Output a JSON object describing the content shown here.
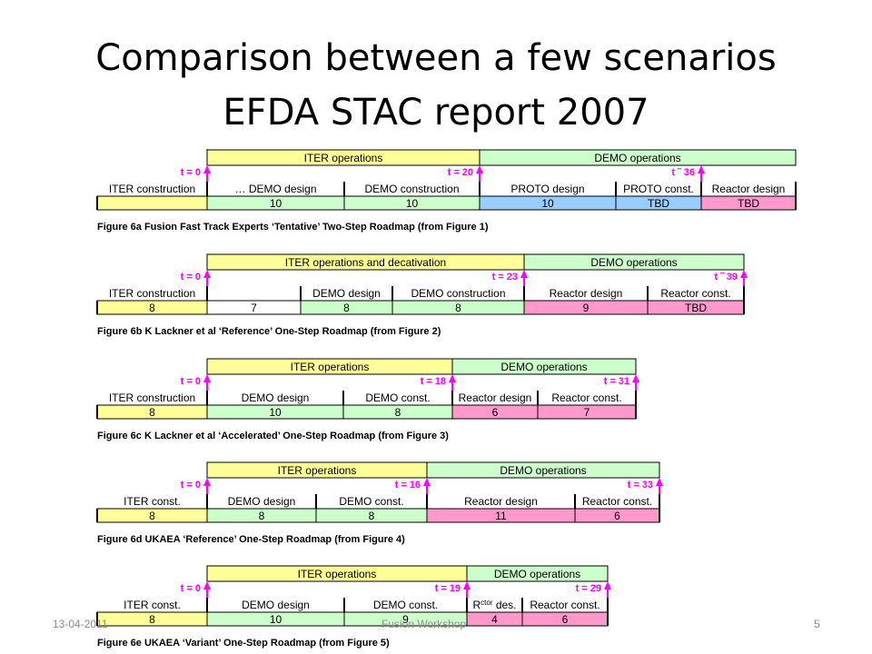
{
  "slide": {
    "title_line1": "Comparison between a few scenarios",
    "title_line2": "EFDA STAC report 2007"
  },
  "colors": {
    "yellow": "#ffff99",
    "green": "#ccffcc",
    "blue": "#99ccff",
    "pink": "#ff99cc",
    "white": "#ffffff",
    "arrow": "#ff00ff"
  },
  "roadmaps": [
    {
      "caption": "Figure 6a  Fusion Fast Track Experts ‘Tentative’ Two-Step Roadmap (from Figure 1)",
      "phases": [
        {
          "label": "ITER operations",
          "color": "yellow"
        },
        {
          "label": "DEMO operations",
          "color": "green"
        }
      ],
      "markers": [
        "t = 0",
        "t = 20",
        "t ˜ 36"
      ],
      "steps": [
        {
          "label": "ITER construction",
          "value": "",
          "color": "yellow"
        },
        {
          "label": "… DEMO design",
          "value": "10",
          "color": "green"
        },
        {
          "label": "DEMO construction",
          "value": "10",
          "color": "green"
        },
        {
          "label": "PROTO design",
          "value": "10",
          "color": "blue"
        },
        {
          "label": "PROTO const.",
          "value": "TBD",
          "color": "blue"
        },
        {
          "label": "Reactor design",
          "value": "TBD",
          "color": "pink"
        }
      ]
    },
    {
      "caption": "Figure 6b  K Lackner et al ‘Reference’ One-Step Roadmap (from Figure 2)",
      "phases": [
        {
          "label": "ITER operations and decativation",
          "color": "yellow"
        },
        {
          "label": "DEMO operations",
          "color": "green"
        }
      ],
      "markers": [
        "t = 0",
        "t = 23",
        "t ˜ 39"
      ],
      "steps": [
        {
          "label": "ITER construction",
          "value": "8",
          "color": "yellow"
        },
        {
          "label": "",
          "value": "7",
          "color": "white"
        },
        {
          "label": "DEMO design",
          "value": "8",
          "color": "green"
        },
        {
          "label": "DEMO construction",
          "value": "8",
          "color": "green"
        },
        {
          "label": "Reactor design",
          "value": "9",
          "color": "pink"
        },
        {
          "label": "Reactor const.",
          "value": "TBD",
          "color": "pink"
        }
      ]
    },
    {
      "caption": "Figure 6c  K Lackner et al ‘Accelerated’ One-Step Roadmap (from Figure 3)",
      "phases": [
        {
          "label": "ITER operations",
          "color": "yellow"
        },
        {
          "label": "DEMO operations",
          "color": "green"
        }
      ],
      "markers": [
        "t = 0",
        "t = 18",
        "t = 31"
      ],
      "steps": [
        {
          "label": "ITER construction",
          "value": "8",
          "color": "yellow"
        },
        {
          "label": "DEMO design",
          "value": "10",
          "color": "green"
        },
        {
          "label": "DEMO const.",
          "value": "8",
          "color": "green"
        },
        {
          "label": "Reactor design",
          "value": "6",
          "color": "pink"
        },
        {
          "label": "Reactor const.",
          "value": "7",
          "color": "pink"
        }
      ]
    },
    {
      "caption": "Figure 6d  UKAEA ‘Reference’ One-Step Roadmap (from Figure 4)",
      "phases": [
        {
          "label": "ITER operations",
          "color": "yellow"
        },
        {
          "label": "DEMO operations",
          "color": "green"
        }
      ],
      "markers": [
        "t = 0",
        "t = 16",
        "t = 33"
      ],
      "steps": [
        {
          "label": "ITER const.",
          "value": "8",
          "color": "yellow"
        },
        {
          "label": "DEMO design",
          "value": "8",
          "color": "green"
        },
        {
          "label": "DEMO const.",
          "value": "8",
          "color": "green"
        },
        {
          "label": "Reactor design",
          "value": "11",
          "color": "pink"
        },
        {
          "label": "Reactor const.",
          "value": "6",
          "color": "pink"
        }
      ]
    },
    {
      "caption": "Figure 6e  UKAEA ‘Variant’ One-Step Roadmap (from Figure 5)",
      "phases": [
        {
          "label": "ITER operations",
          "color": "yellow"
        },
        {
          "label": "DEMO operations",
          "color": "green"
        }
      ],
      "markers": [
        "t = 0",
        "t = 19",
        "t = 29"
      ],
      "steps": [
        {
          "label": "ITER const.",
          "value": "8",
          "color": "yellow"
        },
        {
          "label": "DEMO design",
          "value": "10",
          "color": "green"
        },
        {
          "label": "DEMO const.",
          "value": "9",
          "color": "green"
        },
        {
          "label": "R",
          "label_sup": "ctor",
          "label_rest": " des.",
          "value": "4",
          "color": "pink"
        },
        {
          "label": "Reactor const.",
          "value": "6",
          "color": "pink"
        }
      ]
    }
  ],
  "footer": {
    "date": "13-04-2011",
    "center": "Fusion Workshop",
    "page": "5"
  }
}
